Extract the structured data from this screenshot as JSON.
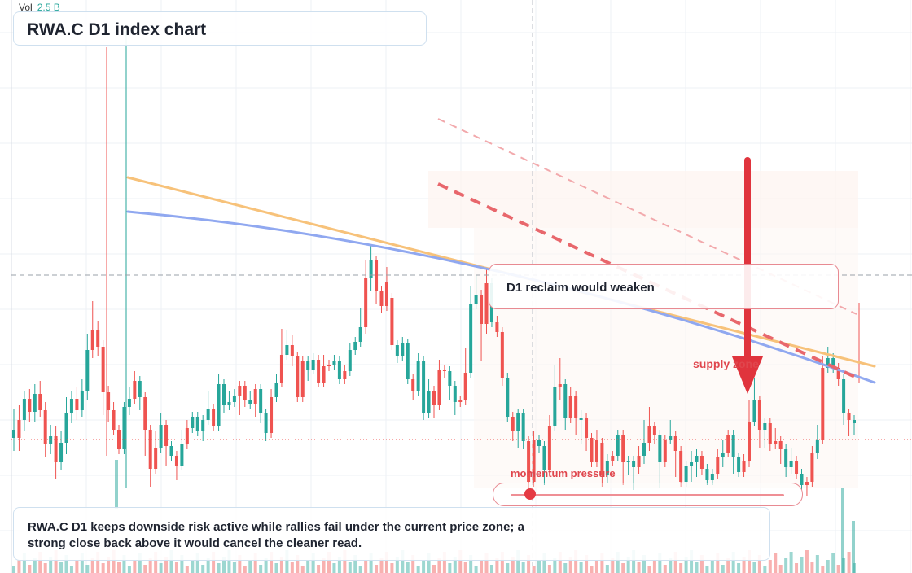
{
  "header": {
    "vol_label": "Vol",
    "vol_value": "2.5 B"
  },
  "title": "RWA.C D1 index chart",
  "note": "D1 reclaim would weaken",
  "zone_label": "supply zone",
  "momentum_label": "momentum pressure",
  "momentum": {
    "level": 0.07
  },
  "caption": "RWA.C D1 keeps downside risk active while rallies fail under the current price zone; a strong close back above it would cancel the cleaner read.",
  "colors": {
    "up": "#26a69a",
    "down": "#ef5350",
    "orange_line": "#f7c27a",
    "blue_line": "#90a8f0",
    "arrow": "#e0343d",
    "dashed": "#e8676c"
  },
  "chart_data": {
    "type": "candlestick",
    "symbol": "RWA.C",
    "timeframe": "D1",
    "grid": true,
    "candles": [
      [
        1,
        528,
        538,
        508,
        548
      ],
      [
        0,
        538,
        516,
        504,
        548
      ],
      [
        1,
        516,
        490,
        486,
        524
      ],
      [
        0,
        490,
        506,
        484,
        512
      ],
      [
        1,
        506,
        484,
        478,
        512
      ],
      [
        0,
        484,
        504,
        474,
        506
      ],
      [
        0,
        504,
        546,
        500,
        556
      ],
      [
        1,
        546,
        536,
        528,
        552
      ],
      [
        0,
        536,
        568,
        530,
        582
      ],
      [
        1,
        568,
        544,
        536,
        572
      ],
      [
        1,
        544,
        508,
        494,
        552
      ],
      [
        1,
        508,
        490,
        486,
        514
      ],
      [
        0,
        490,
        504,
        482,
        510
      ],
      [
        1,
        504,
        480,
        472,
        506
      ],
      [
        1,
        480,
        430,
        416,
        486
      ],
      [
        0,
        430,
        406,
        376,
        434
      ],
      [
        0,
        406,
        426,
        400,
        432
      ],
      [
        0,
        426,
        482,
        424,
        504
      ],
      [
        0,
        482,
        504,
        480,
        512
      ],
      [
        0,
        504,
        528,
        500,
        528
      ],
      [
        0,
        528,
        552,
        552,
        552
      ],
      [
        1,
        552,
        500,
        500,
        524
      ],
      [
        1,
        500,
        490,
        482,
        504
      ],
      [
        0,
        490,
        468,
        462,
        472
      ],
      [
        1,
        468,
        488,
        482,
        498
      ],
      [
        0,
        488,
        528,
        528,
        554
      ],
      [
        0,
        528,
        576,
        576,
        592
      ],
      [
        0,
        576,
        550,
        536,
        572
      ],
      [
        1,
        550,
        522,
        514,
        522
      ],
      [
        0,
        522,
        548,
        542,
        566
      ],
      [
        1,
        548,
        560,
        552,
        558
      ],
      [
        0,
        560,
        572,
        568,
        584
      ],
      [
        1,
        572,
        546,
        534,
        556
      ],
      [
        0,
        546,
        526,
        522,
        526
      ],
      [
        1,
        526,
        512,
        512,
        512
      ],
      [
        1,
        512,
        530,
        512,
        530
      ],
      [
        1,
        530,
        516,
        516,
        536
      ],
      [
        1,
        516,
        502,
        486,
        502
      ],
      [
        0,
        502,
        524,
        524,
        524
      ],
      [
        1,
        524,
        472,
        466,
        492
      ],
      [
        1,
        472,
        498,
        480,
        502
      ],
      [
        1,
        498,
        494,
        486,
        498
      ],
      [
        1,
        494,
        486,
        484,
        486
      ],
      [
        0,
        486,
        474,
        474,
        504
      ],
      [
        0,
        474,
        492,
        486,
        494
      ],
      [
        1,
        492,
        496,
        486,
        496
      ],
      [
        0,
        496,
        478,
        478,
        506
      ],
      [
        1,
        478,
        508,
        494,
        514
      ],
      [
        1,
        508,
        532,
        528,
        536
      ],
      [
        0,
        532,
        488,
        484,
        496
      ],
      [
        1,
        488,
        470,
        466,
        486
      ],
      [
        0,
        470,
        436,
        410,
        440
      ],
      [
        1,
        436,
        424,
        412,
        428
      ],
      [
        0,
        424,
        438,
        418,
        444
      ],
      [
        0,
        438,
        488,
        482,
        488
      ],
      [
        0,
        488,
        444,
        444,
        486
      ],
      [
        1,
        444,
        454,
        446,
        462
      ],
      [
        1,
        454,
        442,
        440,
        442
      ],
      [
        0,
        442,
        470,
        460,
        470
      ],
      [
        0,
        470,
        450,
        442,
        456
      ],
      [
        0,
        450,
        448,
        448,
        450
      ],
      [
        1,
        448,
        444,
        442,
        444
      ],
      [
        1,
        444,
        466,
        454,
        466
      ],
      [
        0,
        466,
        456,
        454,
        460
      ],
      [
        1,
        456,
        430,
        428,
        430
      ],
      [
        1,
        430,
        420,
        420,
        426
      ],
      [
        1,
        420,
        402,
        384,
        406
      ],
      [
        0,
        402,
        342,
        326,
        404
      ],
      [
        1,
        342,
        320,
        306,
        352
      ],
      [
        0,
        320,
        358,
        358,
        368
      ],
      [
        0,
        358,
        376,
        368,
        378
      ],
      [
        0,
        376,
        346,
        334,
        366
      ],
      [
        0,
        366,
        424,
        420,
        424
      ],
      [
        1,
        424,
        438,
        428,
        440
      ],
      [
        1,
        438,
        422,
        420,
        428
      ],
      [
        1,
        422,
        466,
        466,
        466
      ],
      [
        0,
        466,
        480,
        480,
        486
      ],
      [
        1,
        480,
        444,
        440,
        468
      ],
      [
        1,
        444,
        508,
        508,
        510
      ],
      [
        1,
        508,
        480,
        472,
        486
      ],
      [
        0,
        480,
        498,
        494,
        508
      ],
      [
        0,
        498,
        454,
        448,
        474
      ],
      [
        0,
        454,
        456,
        454,
        458
      ],
      [
        1,
        456,
        474,
        474,
        486
      ],
      [
        1,
        474,
        494,
        488,
        504
      ],
      [
        0,
        494,
        492,
        494,
        494
      ],
      [
        0,
        492,
        458,
        434,
        472
      ],
      [
        1,
        458,
        374,
        358,
        382
      ],
      [
        1,
        374,
        362,
        344,
        370
      ],
      [
        0,
        362,
        398,
        374,
        438
      ],
      [
        0,
        398,
        348,
        334,
        404
      ],
      [
        1,
        348,
        396,
        366,
        396
      ],
      [
        0,
        396,
        408,
        394,
        408
      ],
      [
        0,
        408,
        464,
        464,
        468
      ],
      [
        1,
        464,
        512,
        508,
        512
      ],
      [
        0,
        512,
        530,
        530,
        536
      ],
      [
        1,
        530,
        508,
        508,
        544
      ],
      [
        1,
        508,
        542,
        534,
        546
      ],
      [
        0,
        542,
        592,
        592,
        596
      ],
      [
        0,
        592,
        540,
        536,
        542
      ],
      [
        1,
        540,
        548,
        548,
        550
      ],
      [
        1,
        548,
        578,
        568,
        590
      ],
      [
        0,
        578,
        524,
        516,
        532
      ],
      [
        1,
        524,
        476,
        454,
        478
      ],
      [
        0,
        476,
        472,
        446,
        486
      ],
      [
        1,
        472,
        514,
        496,
        522
      ],
      [
        0,
        514,
        486,
        482,
        486
      ],
      [
        0,
        486,
        514,
        492,
        528
      ],
      [
        1,
        514,
        514,
        510,
        540
      ],
      [
        0,
        514,
        538,
        532,
        548
      ],
      [
        0,
        538,
        568,
        568,
        568
      ],
      [
        0,
        568,
        540,
        534,
        544
      ],
      [
        0,
        544,
        584,
        580,
        592
      ],
      [
        1,
        584,
        566,
        564,
        588
      ],
      [
        0,
        566,
        560,
        560,
        560
      ],
      [
        1,
        560,
        534,
        534,
        544
      ],
      [
        0,
        534,
        568,
        568,
        590
      ],
      [
        1,
        568,
        566,
        566,
        578
      ],
      [
        1,
        566,
        574,
        566,
        596
      ],
      [
        0,
        574,
        560,
        554,
        576
      ],
      [
        1,
        560,
        544,
        522,
        564
      ],
      [
        0,
        544,
        524,
        506,
        548
      ],
      [
        0,
        524,
        534,
        524,
        540
      ],
      [
        1,
        534,
        568,
        568,
        594
      ],
      [
        0,
        568,
        540,
        540,
        550
      ],
      [
        1,
        540,
        536,
        522,
        540
      ],
      [
        0,
        536,
        554,
        554,
        580
      ],
      [
        0,
        554,
        592,
        592,
        592
      ],
      [
        1,
        592,
        572,
        572,
        574
      ],
      [
        1,
        572,
        568,
        560,
        586
      ],
      [
        1,
        568,
        560,
        558,
        580
      ],
      [
        0,
        560,
        576,
        576,
        578
      ],
      [
        1,
        576,
        590,
        588,
        590
      ],
      [
        1,
        590,
        582,
        582,
        584
      ],
      [
        0,
        582,
        562,
        558,
        562
      ],
      [
        1,
        562,
        556,
        546,
        568
      ],
      [
        0,
        556,
        534,
        534,
        534
      ],
      [
        1,
        534,
        562,
        562,
        576
      ],
      [
        1,
        562,
        580,
        580,
        580
      ],
      [
        0,
        580,
        566,
        564,
        570
      ],
      [
        0,
        566,
        518,
        498,
        568
      ],
      [
        1,
        518,
        492,
        470,
        498
      ],
      [
        0,
        492,
        528,
        526,
        544
      ],
      [
        1,
        528,
        520,
        520,
        544
      ],
      [
        0,
        520,
        546,
        546,
        548
      ],
      [
        0,
        546,
        542,
        532,
        546
      ],
      [
        0,
        542,
        552,
        542,
        564
      ],
      [
        1,
        552,
        574,
        564,
        580
      ],
      [
        1,
        574,
        566,
        556,
        576
      ],
      [
        0,
        566,
        582,
        580,
        582
      ],
      [
        1,
        582,
        596,
        594,
        596
      ],
      [
        0,
        596,
        592,
        600,
        604
      ],
      [
        0,
        592,
        556,
        554,
        580
      ],
      [
        1,
        556,
        540,
        528,
        558
      ],
      [
        0,
        540,
        452,
        444,
        468
      ],
      [
        1,
        452,
        440,
        432,
        452
      ],
      [
        1,
        440,
        452,
        446,
        452
      ],
      [
        0,
        452,
        466,
        466,
        468
      ],
      [
        1,
        466,
        508,
        504,
        516
      ],
      [
        0,
        508,
        516,
        510,
        530
      ],
      [
        1,
        516,
        520,
        520,
        528
      ]
    ],
    "overlays": {
      "orange_trendline": true,
      "blue_regression_curve": true,
      "dashed_resistance_lines": 2,
      "supply_zone_arrow": "down",
      "price_line_dashed": true,
      "price_line_dotted_red": true
    },
    "volume": {
      "label": "Vol",
      "value": "2.5 B"
    }
  }
}
